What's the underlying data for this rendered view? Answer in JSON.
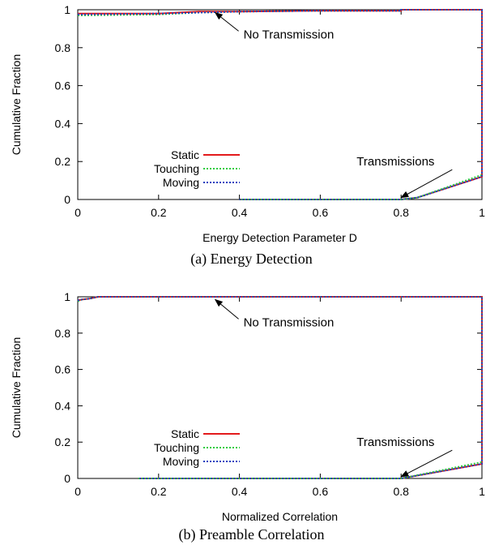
{
  "chart_data": [
    {
      "type": "line",
      "caption": "(a) Energy Detection",
      "xlabel": "Energy Detection Parameter D",
      "ylabel": "Cumulative Fraction",
      "xlim": [
        0,
        1
      ],
      "ylim": [
        0,
        1
      ],
      "xticks": [
        "0",
        "0.2",
        "0.4",
        "0.6",
        "0.8",
        "1"
      ],
      "yticks": [
        "0",
        "0.2",
        "0.4",
        "0.6",
        "0.8",
        "1"
      ],
      "grid": false,
      "legend_position": "bottom-left",
      "annotations": [
        {
          "text": "No Transmission",
          "x": 0.41,
          "y": 0.87,
          "target": [
            0.34,
            0.985
          ]
        },
        {
          "text": "Transmissions",
          "x": 0.69,
          "y": 0.2,
          "target": [
            0.8,
            0.01
          ]
        }
      ],
      "series": [
        {
          "name": "Static",
          "color": "#e31a1c",
          "dash": "solid",
          "x": [
            0,
            0.2,
            0.3,
            0.4,
            0.6,
            0.8,
            0.8,
            1,
            1,
            0.84,
            0.8,
            0.4
          ],
          "y": [
            0.98,
            0.98,
            0.99,
            0.99,
            0.995,
            0.995,
            1.0,
            1.0,
            0.12,
            0.01,
            0.0,
            0.0
          ]
        },
        {
          "name": "Touching",
          "color": "#2ecc40",
          "dash": "dotted",
          "x": [
            0,
            0.2,
            0.3,
            0.4,
            0.6,
            0.8,
            0.8,
            1,
            1,
            0.84,
            0.8,
            0.4
          ],
          "y": [
            0.97,
            0.975,
            0.985,
            0.99,
            0.995,
            0.995,
            1.0,
            1.0,
            0.13,
            0.01,
            0.0,
            0.0
          ]
        },
        {
          "name": "Moving",
          "color": "#1f3fbf",
          "dash": "dotted",
          "x": [
            0,
            0.2,
            0.3,
            0.4,
            0.6,
            0.8,
            0.8,
            1,
            1,
            0.84,
            0.8,
            0.4
          ],
          "y": [
            0.975,
            0.98,
            0.985,
            0.99,
            0.995,
            0.995,
            1.0,
            1.0,
            0.12,
            0.01,
            0.0,
            0.0
          ]
        }
      ]
    },
    {
      "type": "line",
      "caption": "(b) Preamble Correlation",
      "xlabel": "Normalized Correlation",
      "ylabel": "Cumulative Fraction",
      "xlim": [
        0,
        1
      ],
      "ylim": [
        0,
        1
      ],
      "xticks": [
        "0",
        "0.2",
        "0.4",
        "0.6",
        "0.8",
        "1"
      ],
      "yticks": [
        "0",
        "0.2",
        "0.4",
        "0.6",
        "0.8",
        "1"
      ],
      "grid": false,
      "legend_position": "bottom-left",
      "annotations": [
        {
          "text": "No Transmission",
          "x": 0.41,
          "y": 0.86,
          "target": [
            0.34,
            0.985
          ]
        },
        {
          "text": "Transmissions",
          "x": 0.69,
          "y": 0.2,
          "target": [
            0.8,
            0.01
          ]
        }
      ],
      "series": [
        {
          "name": "Static",
          "color": "#e31a1c",
          "dash": "solid",
          "x": [
            0,
            0.01,
            0.03,
            0.05,
            0.2,
            0.6,
            0.8,
            0.8,
            1,
            1,
            0.8,
            0.15
          ],
          "y": [
            0.98,
            0.985,
            0.99,
            1.0,
            1.0,
            1.0,
            1.0,
            1.0,
            1.0,
            0.08,
            0.0,
            0.0
          ]
        },
        {
          "name": "Touching",
          "color": "#2ecc40",
          "dash": "dotted",
          "x": [
            0,
            0.01,
            0.03,
            0.05,
            0.2,
            0.6,
            0.8,
            0.8,
            1,
            1,
            0.8,
            0.15
          ],
          "y": [
            0.975,
            0.985,
            0.99,
            1.0,
            1.0,
            1.0,
            1.0,
            1.0,
            1.0,
            0.09,
            0.0,
            0.0
          ]
        },
        {
          "name": "Moving",
          "color": "#1f3fbf",
          "dash": "dotted",
          "x": [
            0,
            0.01,
            0.03,
            0.05,
            0.2,
            0.6,
            0.8,
            0.8,
            1,
            1,
            0.8,
            0.15
          ],
          "y": [
            0.98,
            0.985,
            0.99,
            1.0,
            1.0,
            1.0,
            1.0,
            1.0,
            1.0,
            0.08,
            0.0,
            0.0
          ]
        }
      ]
    }
  ]
}
